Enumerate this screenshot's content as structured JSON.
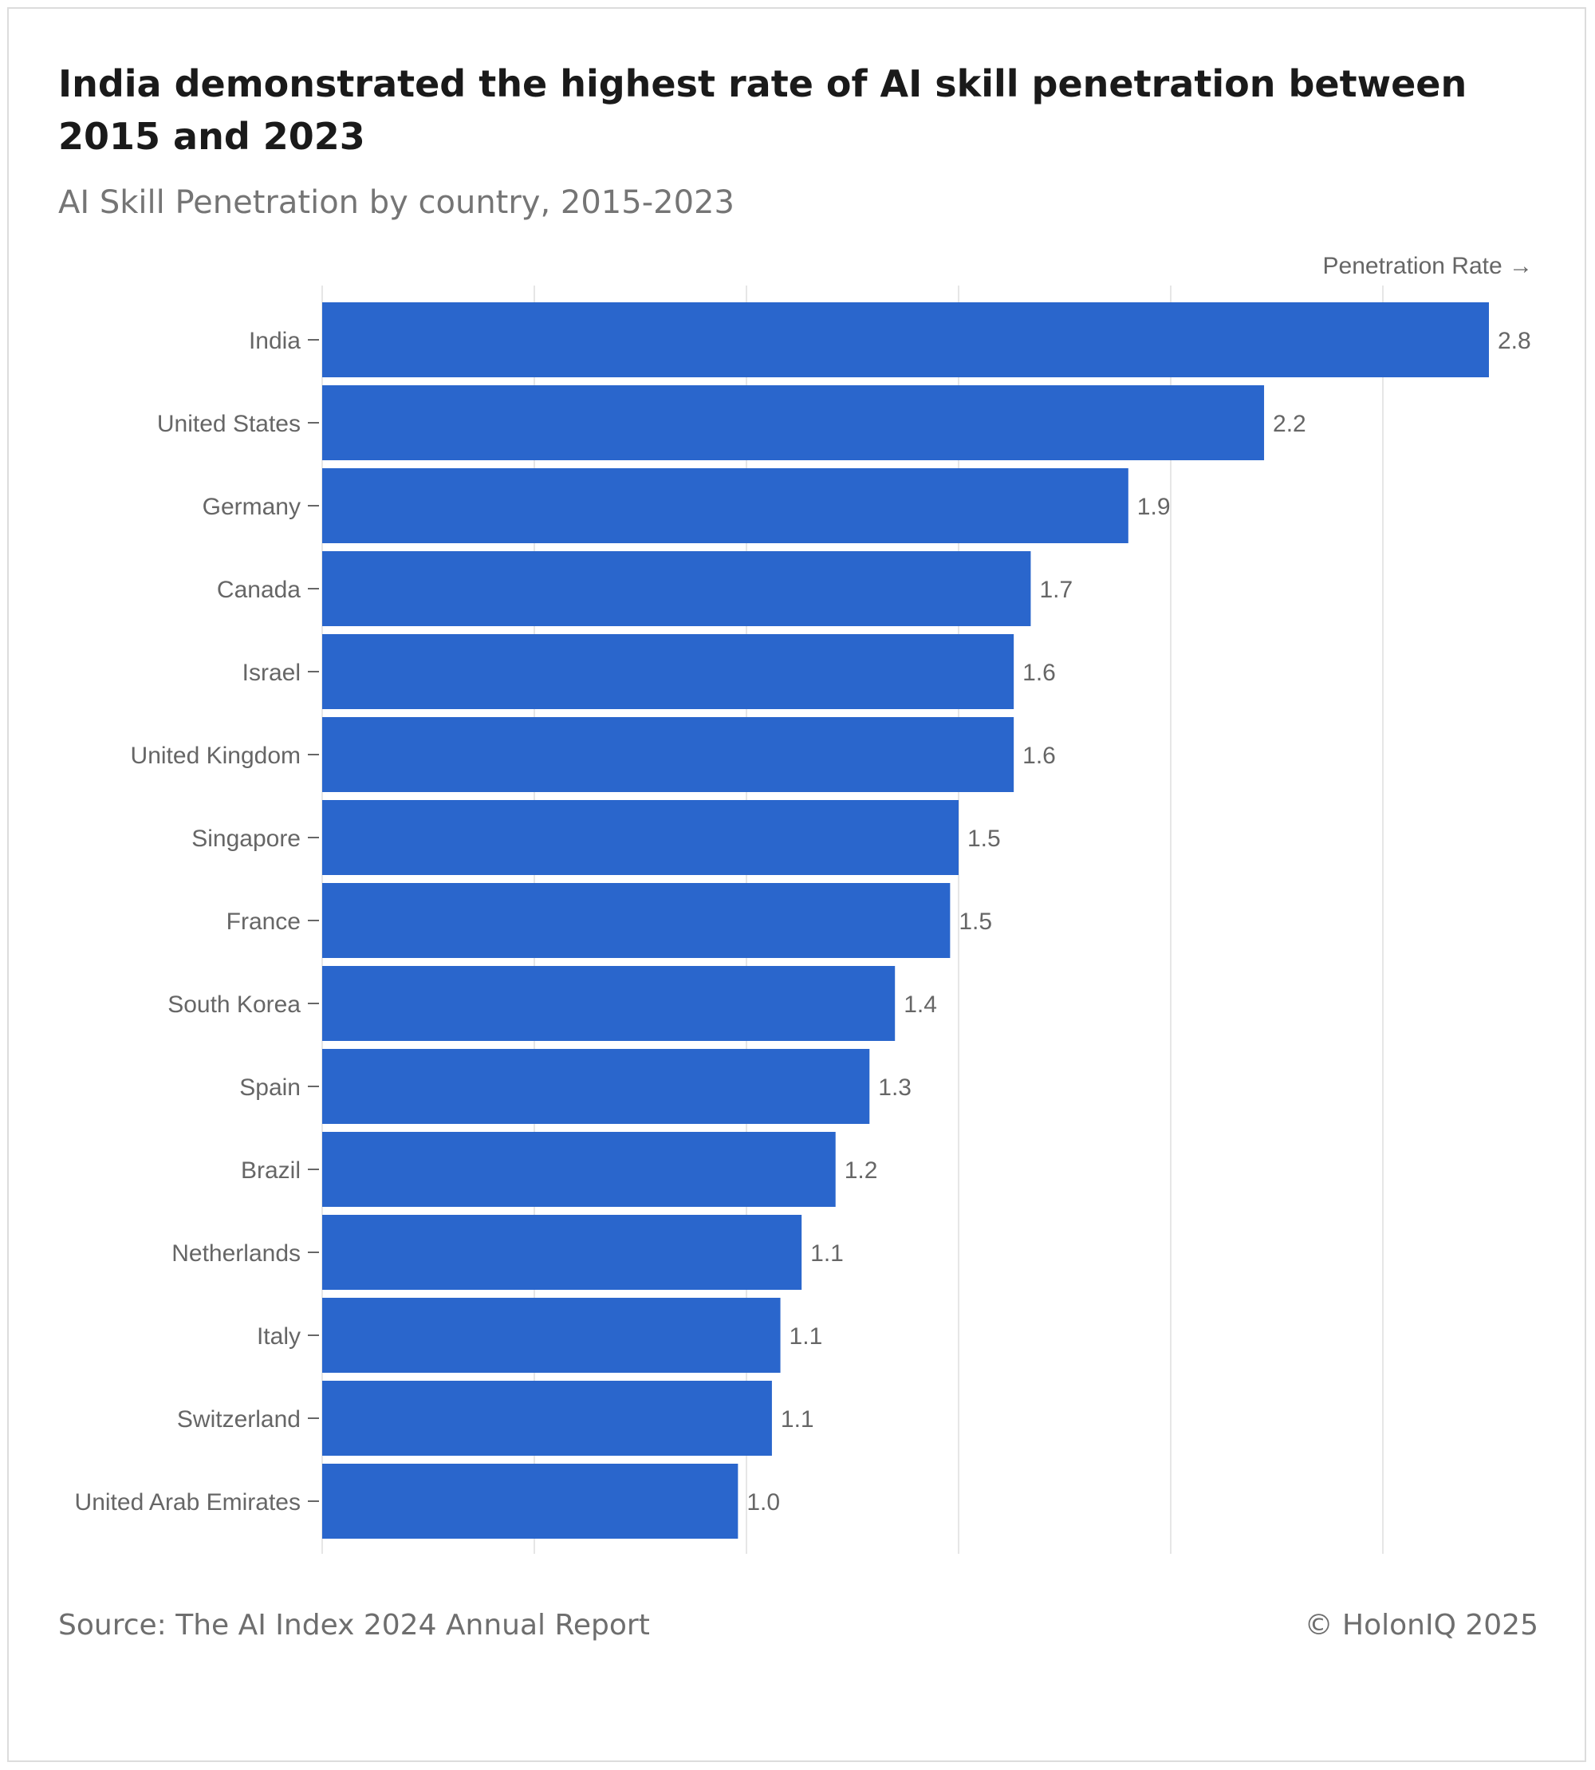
{
  "title": "India demonstrated the highest rate of AI skill penetration between 2015 and 2023",
  "subtitle": "AI Skill Penetration by country, 2015-2023",
  "footer": {
    "source": "Source: The AI Index 2024 Annual Report",
    "copyright": "© HolonIQ 2025"
  },
  "colors": {
    "bar": "#2a66cc",
    "grid": "#e6e6e6",
    "label": "#666666"
  },
  "chart_data": {
    "type": "bar",
    "orientation": "horizontal",
    "xlabel": "Penetration Rate →",
    "xlim": [
      0,
      2.9
    ],
    "grid": true,
    "categories": [
      "India",
      "United States",
      "Germany",
      "Canada",
      "Israel",
      "United Kingdom",
      "Singapore",
      "France",
      "South Korea",
      "Spain",
      "Brazil",
      "Netherlands",
      "Italy",
      "Switzerland",
      "United Arab Emirates"
    ],
    "values": [
      2.75,
      2.22,
      1.9,
      1.67,
      1.63,
      1.63,
      1.5,
      1.48,
      1.35,
      1.29,
      1.21,
      1.13,
      1.08,
      1.06,
      0.98
    ],
    "labels": [
      "2.8",
      "2.2",
      "1.9",
      "1.7",
      "1.6",
      "1.6",
      "1.5",
      "1.5",
      "1.4",
      "1.3",
      "1.2",
      "1.1",
      "1.1",
      "1.1",
      "1.0"
    ]
  }
}
